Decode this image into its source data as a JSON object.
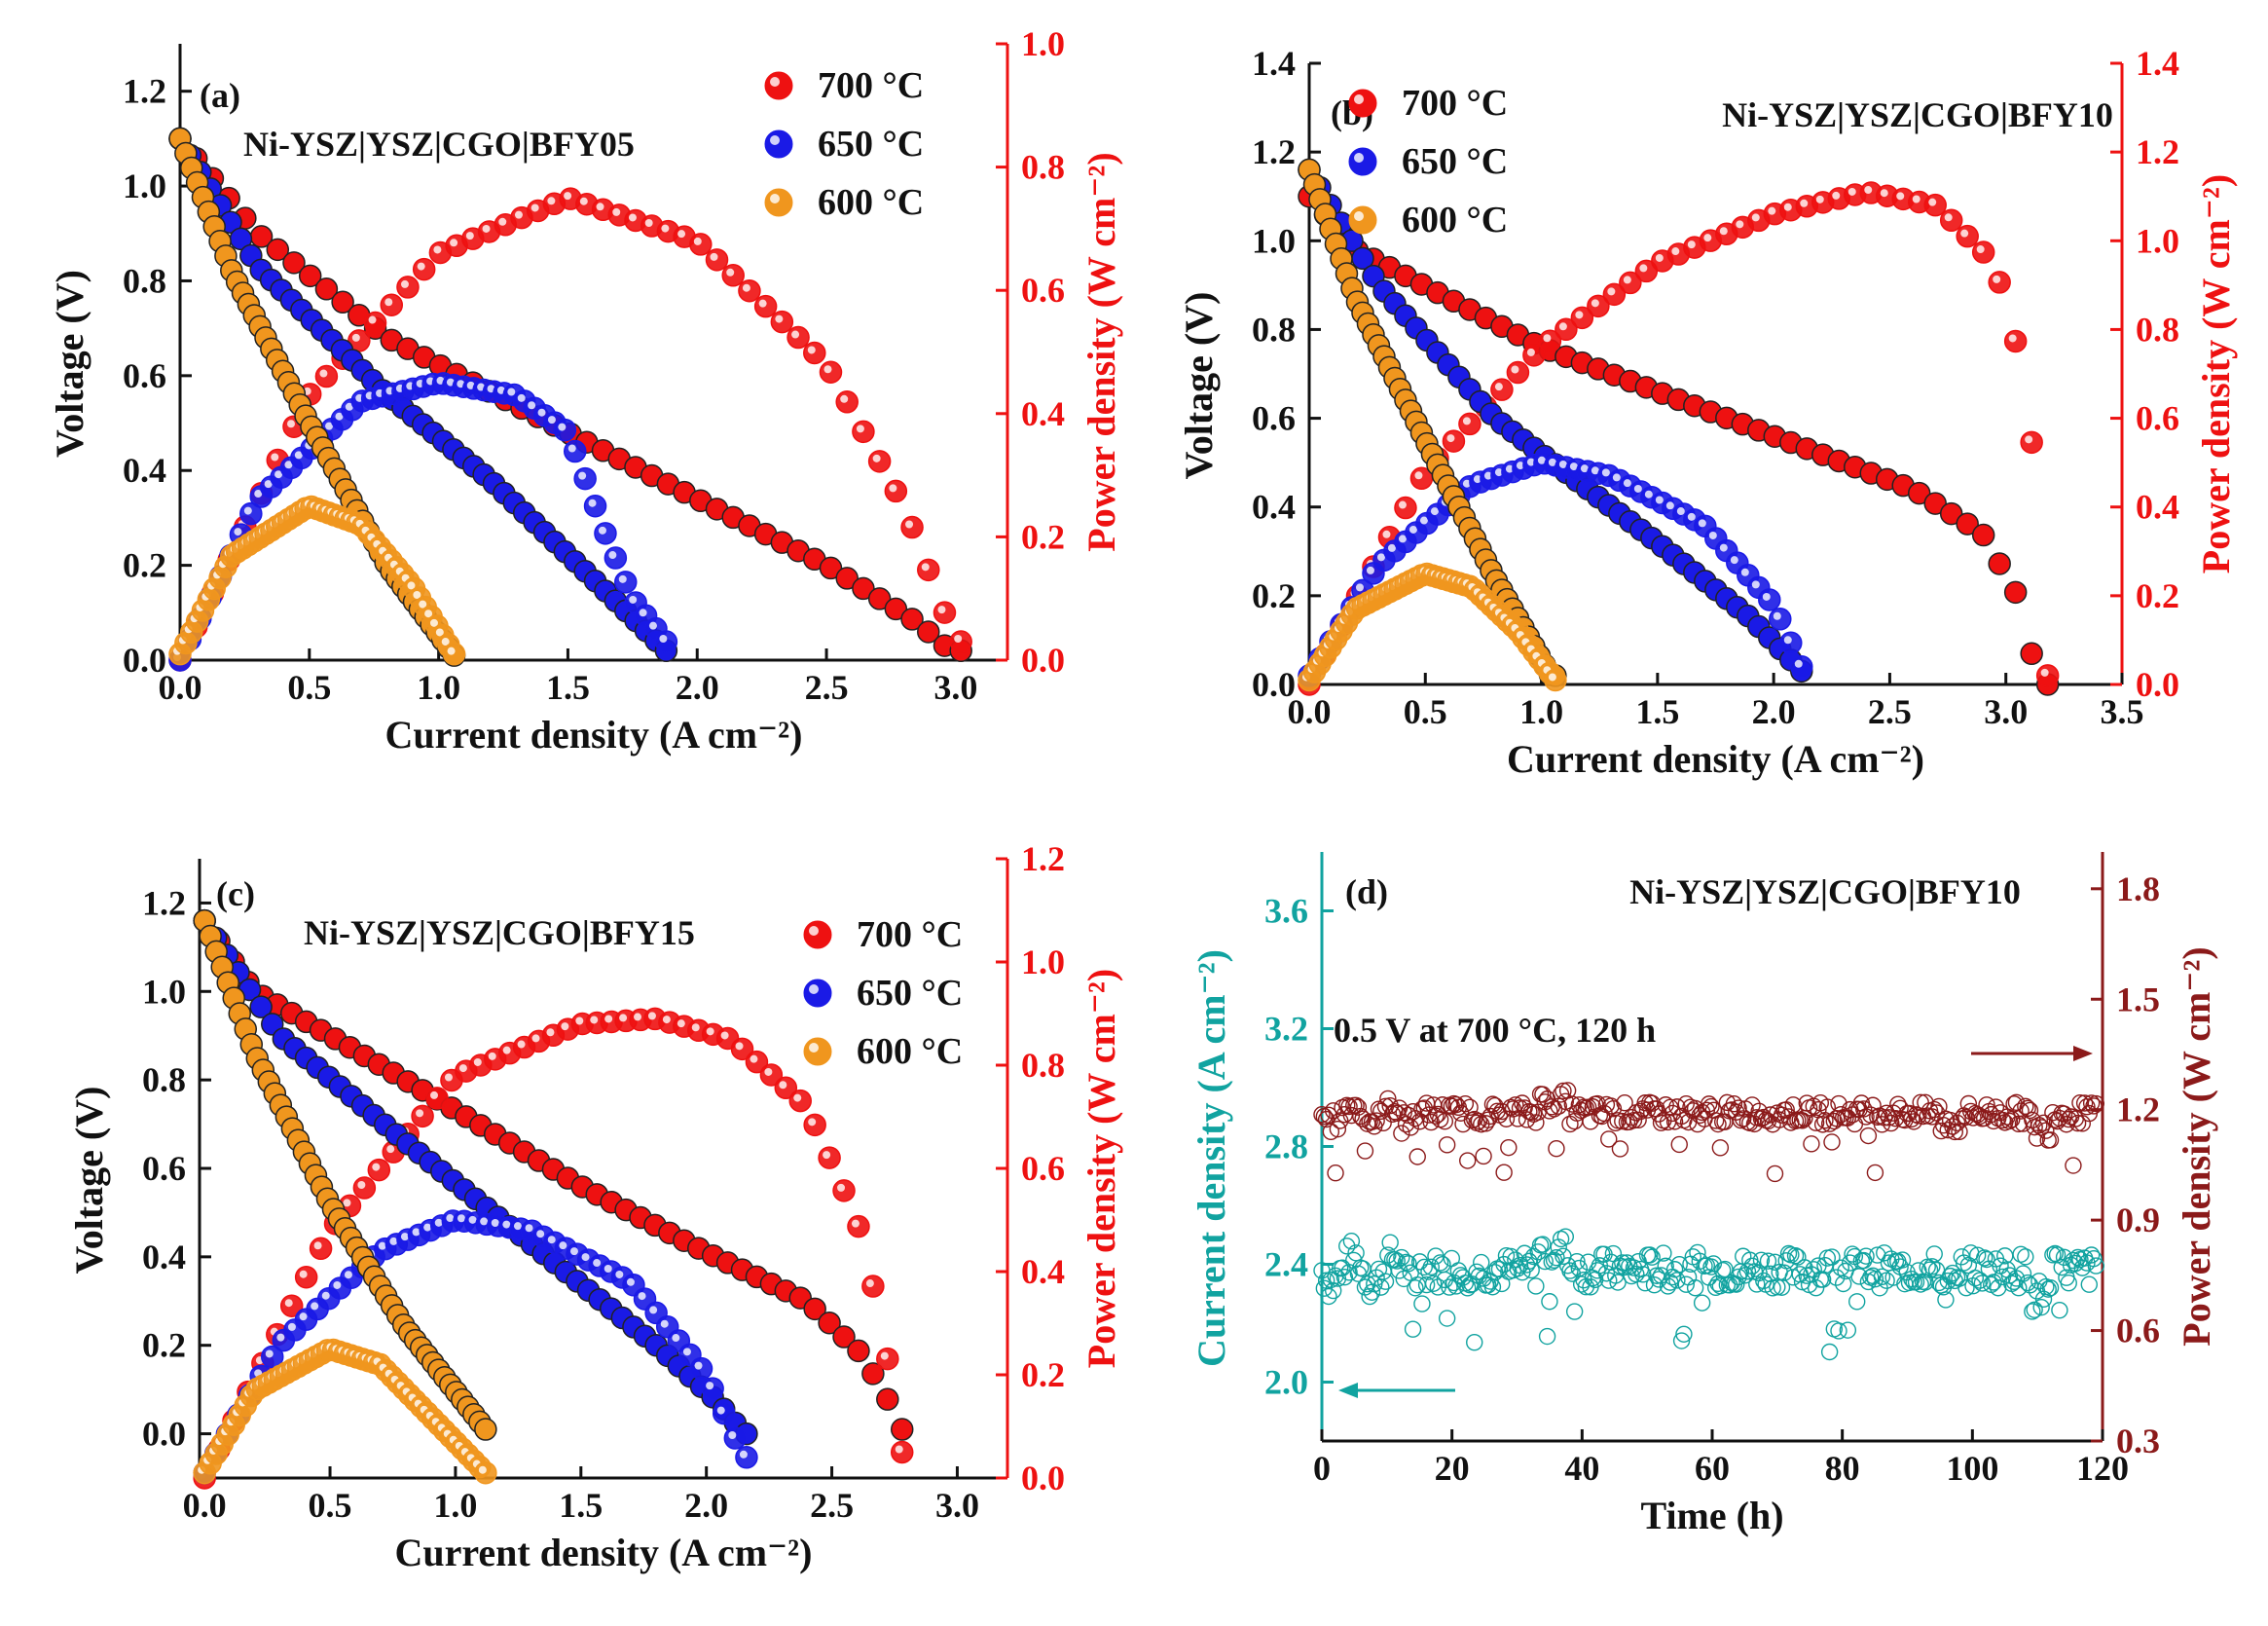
{
  "colors": {
    "red": "#ee1111",
    "darkred": "#b0141a",
    "blue": "#1a1ae6",
    "orange": "#f0961e",
    "maroon": "#8b1a1a",
    "teal": "#11a3a0",
    "black": "#111111"
  },
  "chart_data": [
    {
      "type": "line",
      "panel": "(a)",
      "title": "Ni-YSZ|YSZ|CGO|BFY05",
      "xlabel": "Current density (A cm⁻²)",
      "ylabel": "Voltage (V)",
      "y2label": "Power density (W cm⁻²)",
      "xlim": [
        0,
        3.2
      ],
      "ylim": [
        0,
        1.3
      ],
      "y2lim": [
        0,
        1.0
      ],
      "xticks": [
        "0.0",
        "0.5",
        "1.0",
        "1.5",
        "2.0",
        "2.5",
        "3.0"
      ],
      "yticks": [
        "0.0",
        "0.2",
        "0.4",
        "0.6",
        "0.8",
        "1.0",
        "1.2"
      ],
      "y2ticks": [
        "0.0",
        "0.2",
        "0.4",
        "0.6",
        "0.8",
        "1.0"
      ],
      "legend": [
        "700 °C",
        "650 °C",
        "600 °C"
      ],
      "legend_position": "top-right",
      "series": [
        {
          "name": "700 °C",
          "color": "red",
          "jmax": 3.02,
          "v_ocv": 1.1,
          "iv": [
            [
              0,
              1.1
            ],
            [
              0.3,
              0.9
            ],
            [
              0.8,
              0.68
            ],
            [
              1.5,
              0.48
            ],
            [
              2.0,
              0.34
            ],
            [
              2.5,
              0.2
            ],
            [
              2.85,
              0.08
            ],
            [
              2.98,
              0.02
            ]
          ],
          "pd": [
            [
              0,
              0
            ],
            [
              0.5,
              0.43
            ],
            [
              1.0,
              0.66
            ],
            [
              1.5,
              0.75
            ],
            [
              2.0,
              0.68
            ],
            [
              2.5,
              0.48
            ],
            [
              2.8,
              0.25
            ],
            [
              3.0,
              0.03
            ]
          ]
        },
        {
          "name": "650 °C",
          "color": "blue",
          "jmax": 1.88,
          "v_ocv": 1.1,
          "iv": [
            [
              0,
              1.1
            ],
            [
              0.3,
              0.83
            ],
            [
              0.8,
              0.56
            ],
            [
              1.2,
              0.38
            ],
            [
              1.6,
              0.17
            ],
            [
              1.88,
              0.02
            ]
          ],
          "pd": [
            [
              0,
              0
            ],
            [
              0.3,
              0.26
            ],
            [
              0.7,
              0.42
            ],
            [
              1.0,
              0.45
            ],
            [
              1.3,
              0.43
            ],
            [
              1.5,
              0.37
            ],
            [
              1.65,
              0.2
            ],
            [
              1.75,
              0.1
            ],
            [
              1.88,
              0.03
            ]
          ]
        },
        {
          "name": "600 °C",
          "color": "orange",
          "jmax": 1.06,
          "v_ocv": 1.1,
          "iv": [
            [
              0,
              1.1
            ],
            [
              0.2,
              0.82
            ],
            [
              0.5,
              0.5
            ],
            [
              0.8,
              0.2
            ],
            [
              1.06,
              0.01
            ]
          ],
          "pd": [
            [
              0,
              0.01
            ],
            [
              0.2,
              0.17
            ],
            [
              0.5,
              0.25
            ],
            [
              0.7,
              0.22
            ],
            [
              0.9,
              0.12
            ],
            [
              1.06,
              0.01
            ]
          ]
        }
      ]
    },
    {
      "type": "line",
      "panel": "(b)",
      "title": "Ni-YSZ|YSZ|CGO|BFY10",
      "xlabel": "Current density (A cm⁻²)",
      "ylabel": "Voltage (V)",
      "y2label": "Power density (W cm⁻²)",
      "xlim": [
        0,
        3.5
      ],
      "ylim": [
        0,
        1.4
      ],
      "y2lim": [
        0,
        1.4
      ],
      "xticks": [
        "0.0",
        "0.5",
        "1.0",
        "1.5",
        "2.0",
        "2.5",
        "3.0",
        "3.5"
      ],
      "yticks": [
        "0.0",
        "0.2",
        "0.4",
        "0.6",
        "0.8",
        "1.0",
        "1.2",
        "1.4"
      ],
      "y2ticks": [
        "0.0",
        "0.2",
        "0.4",
        "0.6",
        "0.8",
        "1.0",
        "1.2",
        "1.4"
      ],
      "legend": [
        "700 °C",
        "650 °C",
        "600 °C"
      ],
      "legend_position": "top-left",
      "series": [
        {
          "name": "700 °C",
          "color": "red",
          "jmax": 3.18,
          "v_ocv": 1.1,
          "iv": [
            [
              0,
              1.1
            ],
            [
              0.2,
              0.98
            ],
            [
              1.0,
              0.76
            ],
            [
              2.0,
              0.56
            ],
            [
              2.6,
              0.44
            ],
            [
              2.9,
              0.34
            ],
            [
              3.05,
              0.2
            ],
            [
              3.12,
              0.05
            ],
            [
              3.16,
              0.0
            ]
          ],
          "pd": [
            [
              0,
              0
            ],
            [
              0.5,
              0.48
            ],
            [
              1.0,
              0.76
            ],
            [
              1.5,
              0.95
            ],
            [
              2.0,
              1.06
            ],
            [
              2.4,
              1.11
            ],
            [
              2.7,
              1.08
            ],
            [
              2.95,
              0.95
            ],
            [
              3.08,
              0.7
            ],
            [
              3.14,
              0.4
            ],
            [
              3.18,
              0.02
            ]
          ]
        },
        {
          "name": "650 °C",
          "color": "blue",
          "jmax": 2.12,
          "v_ocv": 1.16,
          "iv": [
            [
              0,
              1.16
            ],
            [
              0.3,
              0.9
            ],
            [
              0.8,
              0.6
            ],
            [
              1.5,
              0.32
            ],
            [
              1.9,
              0.15
            ],
            [
              2.12,
              0.03
            ]
          ],
          "pd": [
            [
              0,
              0.02
            ],
            [
              0.3,
              0.27
            ],
            [
              0.7,
              0.45
            ],
            [
              1.0,
              0.5
            ],
            [
              1.3,
              0.47
            ],
            [
              1.7,
              0.36
            ],
            [
              2.0,
              0.18
            ],
            [
              2.12,
              0.04
            ]
          ]
        },
        {
          "name": "600 °C",
          "color": "orange",
          "jmax": 1.06,
          "v_ocv": 1.16,
          "iv": [
            [
              0,
              1.16
            ],
            [
              0.2,
              0.87
            ],
            [
              0.5,
              0.55
            ],
            [
              0.8,
              0.24
            ],
            [
              1.04,
              0.02
            ]
          ],
          "pd": [
            [
              0,
              0.01
            ],
            [
              0.2,
              0.17
            ],
            [
              0.5,
              0.25
            ],
            [
              0.7,
              0.22
            ],
            [
              0.9,
              0.12
            ],
            [
              1.06,
              0.01
            ]
          ]
        }
      ]
    },
    {
      "type": "line",
      "panel": "(c)",
      "title": "Ni-YSZ|YSZ|CGO|BFY15",
      "xlabel": "Current density (A cm⁻²)",
      "ylabel": "Voltage (V)",
      "y2label": "Power density (W cm⁻²)",
      "xlim": [
        -0.02,
        3.2
      ],
      "ylim": [
        -0.1,
        1.3
      ],
      "y2lim": [
        0,
        1.2
      ],
      "xticks": [
        "0.0",
        "0.5",
        "1.0",
        "1.5",
        "2.0",
        "2.5",
        "3.0"
      ],
      "yticks": [
        "0.0",
        "0.2",
        "0.4",
        "0.6",
        "0.8",
        "1.0",
        "1.2"
      ],
      "y2ticks": [
        "0.0",
        "0.2",
        "0.4",
        "0.6",
        "0.8",
        "1.0",
        "1.2"
      ],
      "legend": [
        "700 °C",
        "650 °C",
        "600 °C"
      ],
      "legend_position": "top-right",
      "series": [
        {
          "name": "700 °C",
          "color": "red",
          "jmax": 2.78,
          "v_ocv": 1.16,
          "iv": [
            [
              0,
              1.16
            ],
            [
              0.2,
              1.0
            ],
            [
              0.8,
              0.8
            ],
            [
              1.5,
              0.56
            ],
            [
              2.0,
              0.41
            ],
            [
              2.4,
              0.3
            ],
            [
              2.62,
              0.18
            ],
            [
              2.74,
              0.06
            ],
            [
              2.78,
              0.01
            ]
          ],
          "pd": [
            [
              0,
              0
            ],
            [
              0.5,
              0.48
            ],
            [
              1.0,
              0.78
            ],
            [
              1.5,
              0.88
            ],
            [
              1.8,
              0.89
            ],
            [
              2.1,
              0.85
            ],
            [
              2.4,
              0.72
            ],
            [
              2.6,
              0.5
            ],
            [
              2.7,
              0.3
            ],
            [
              2.78,
              0.05
            ]
          ]
        },
        {
          "name": "650 °C",
          "color": "blue",
          "jmax": 2.16,
          "v_ocv": 1.16,
          "iv": [
            [
              0,
              1.16
            ],
            [
              0.3,
              0.9
            ],
            [
              0.8,
              0.66
            ],
            [
              1.3,
              0.43
            ],
            [
              1.8,
              0.2
            ],
            [
              2.05,
              0.07
            ],
            [
              2.15,
              0.0
            ]
          ],
          "pd": [
            [
              0,
              0.01
            ],
            [
              0.3,
              0.26
            ],
            [
              0.7,
              0.44
            ],
            [
              1.0,
              0.5
            ],
            [
              1.3,
              0.48
            ],
            [
              1.7,
              0.38
            ],
            [
              2.0,
              0.2
            ],
            [
              2.15,
              0.04
            ]
          ]
        },
        {
          "name": "600 °C",
          "color": "orange",
          "jmax": 1.12,
          "v_ocv": 1.16,
          "iv": [
            [
              0,
              1.16
            ],
            [
              0.2,
              0.86
            ],
            [
              0.5,
              0.52
            ],
            [
              0.8,
              0.24
            ],
            [
              1.12,
              0.01
            ]
          ],
          "pd": [
            [
              0,
              0.01
            ],
            [
              0.2,
              0.17
            ],
            [
              0.5,
              0.25
            ],
            [
              0.7,
              0.22
            ],
            [
              0.9,
              0.12
            ],
            [
              1.12,
              0.01
            ]
          ]
        }
      ]
    },
    {
      "type": "scatter",
      "panel": "(d)",
      "title": "Ni-YSZ|YSZ|CGO|BFY10",
      "annotation": "0.5 V at 700 °C, 120 h",
      "xlabel": "Time (h)",
      "ylabel": "Current density (A cm⁻²)",
      "y2label": "Power density (W cm⁻²)",
      "xlim": [
        0,
        120
      ],
      "ylim": [
        1.8,
        3.8
      ],
      "y2lim": [
        0.3,
        1.9
      ],
      "xticks": [
        "0",
        "20",
        "40",
        "60",
        "80",
        "100",
        "120"
      ],
      "yticks": [
        "2.0",
        "2.4",
        "2.8",
        "3.2",
        "3.6"
      ],
      "y2ticks": [
        "0.3",
        "0.6",
        "0.9",
        "1.2",
        "1.5",
        "1.8"
      ],
      "series": [
        {
          "name": "Current density",
          "color": "teal",
          "axis": "left",
          "mean": 2.38
        },
        {
          "name": "Power density",
          "color": "maroon",
          "axis": "right",
          "mean": 1.19
        }
      ]
    }
  ]
}
